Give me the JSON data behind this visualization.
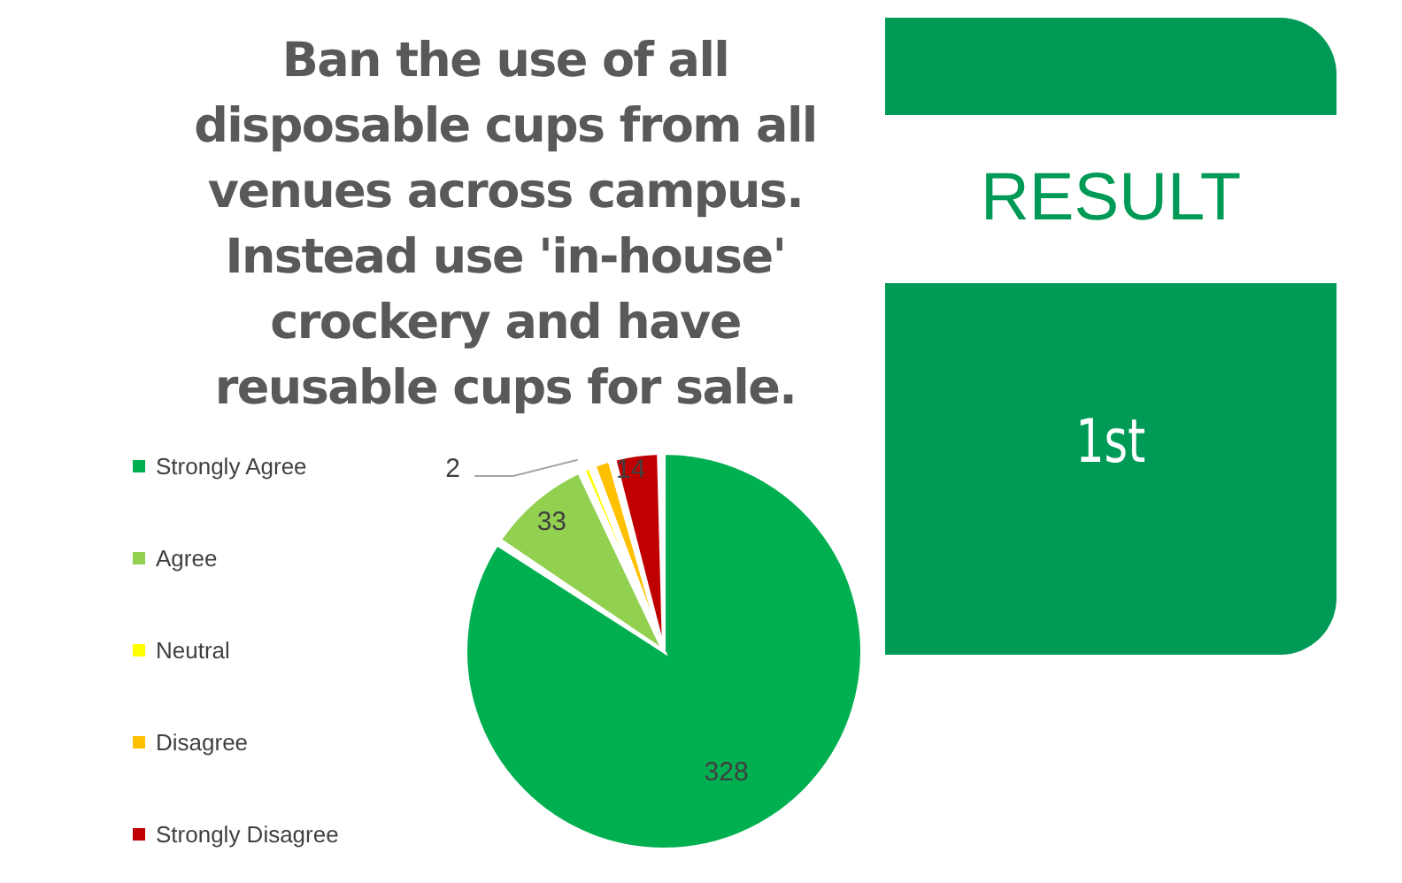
{
  "chart_data": {
    "type": "pie",
    "title": "Ban the use of all disposable cups from all venues across campus. Instead use 'in-house' crockery and have reusable cups for sale.",
    "categories": [
      "Strongly Agree",
      "Agree",
      "Neutral",
      "Disagree",
      "Strongly Disagree"
    ],
    "values": [
      328,
      33,
      2,
      5,
      14
    ],
    "value_labels": [
      "328",
      "33",
      "2",
      null,
      "14"
    ],
    "colors": [
      "#00b050",
      "#92d050",
      "#ffff00",
      "#ffc000",
      "#c00000"
    ],
    "legend": "left",
    "annotations": [
      "RESULT",
      "1st"
    ]
  }
}
